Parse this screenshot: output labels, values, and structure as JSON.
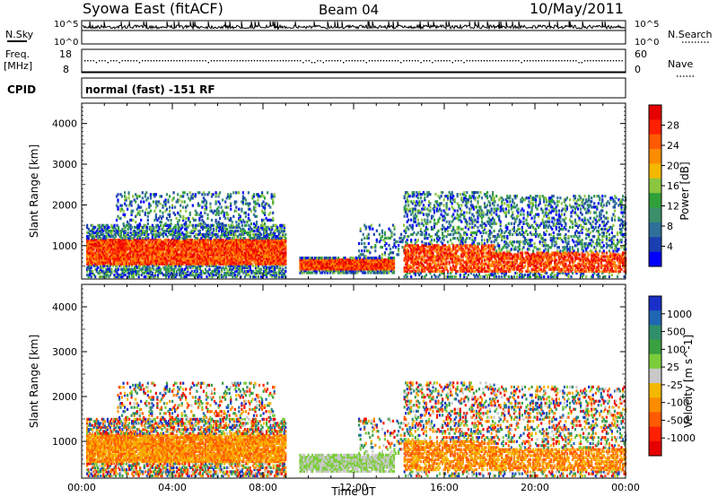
{
  "header": {
    "station": "Syowa East (fitACF)",
    "beam": "Beam 04",
    "date": "10/May/2011"
  },
  "noise_panel": {
    "left_label": "N.Sky",
    "right_label": "N.Search",
    "left_ticks": [
      "10^5",
      "10^0"
    ],
    "right_ticks": [
      "10^5",
      "10^0"
    ]
  },
  "freq_panel": {
    "left_label_1": "Freq.",
    "left_label_2": "[MHz]",
    "left_ticks": [
      "18",
      "8"
    ],
    "right_label": "Nave",
    "right_ticks": [
      "60",
      "0"
    ]
  },
  "cpid_panel": {
    "label": "CPID",
    "mode": "normal (fast) -151 RF"
  },
  "colors": {
    "power": [
      "#0000ff",
      "#1a3fb0",
      "#2f6f9a",
      "#3a8f6a",
      "#2fa03a",
      "#8cc63f",
      "#f5b800",
      "#ff8c00",
      "#ff5a00",
      "#ff2000",
      "#e60000"
    ],
    "velocity": [
      "#1a2fc8",
      "#1f66b4",
      "#2f8f6a",
      "#3aa040",
      "#7ccd3c",
      "#c8c8c8",
      "#f5b800",
      "#ff8c00",
      "#ff5a00",
      "#ff2000",
      "#e60000"
    ]
  },
  "chart_data": [
    {
      "type": "heatmap",
      "name": "power",
      "ylabel": "Slant Range [km]",
      "xlabel": "",
      "ylim": [
        180,
        4500
      ],
      "yticks": [
        "1000",
        "2000",
        "3000",
        "4000"
      ],
      "xticks": [
        "00:00",
        "04:00",
        "08:00",
        "12:00",
        "16:00",
        "20:00",
        "00:00"
      ],
      "colorbar_label": "Power [dB]",
      "colorbar_ticks": [
        "4",
        "8",
        "12",
        "16",
        "20",
        "24",
        "28"
      ]
    },
    {
      "type": "heatmap",
      "name": "velocity",
      "ylabel": "Slant Range [km]",
      "xlabel": "Time UT",
      "ylim": [
        180,
        4500
      ],
      "yticks": [
        "1000",
        "2000",
        "3000",
        "4000"
      ],
      "xticks": [
        "00:00",
        "04:00",
        "08:00",
        "12:00",
        "16:00",
        "20:00",
        "00:00"
      ],
      "colorbar_label": "Velocity [m s^-1]",
      "colorbar_ticks": [
        "1000",
        "500",
        "100",
        "25",
        "-25",
        "-100",
        "-500",
        "-1000"
      ]
    }
  ]
}
